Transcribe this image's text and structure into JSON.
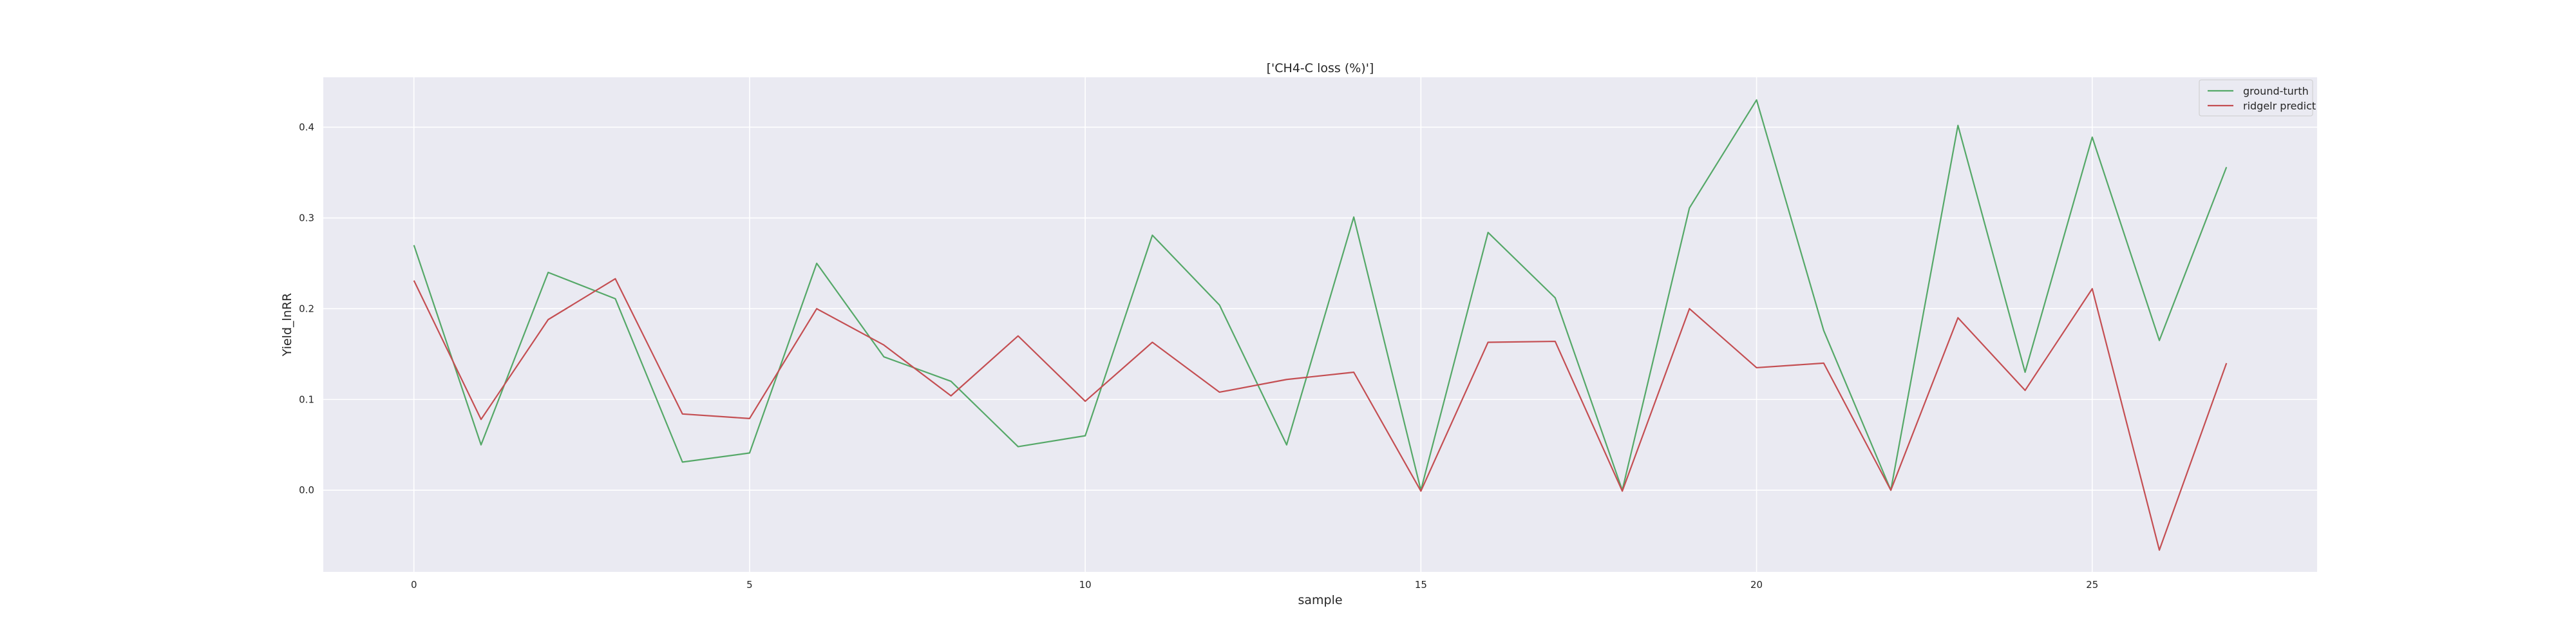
{
  "chart_data": {
    "type": "line",
    "title": "['CH4-C loss (%)']",
    "xlabel": "sample",
    "ylabel": "Yield_lnRR",
    "xlim": [
      -1.35,
      28.35
    ],
    "ylim": [
      -0.09,
      0.455
    ],
    "xticks": [
      0,
      5,
      10,
      15,
      20,
      25
    ],
    "yticks": [
      0.0,
      0.1,
      0.2,
      0.3,
      0.4
    ],
    "xtick_labels": [
      "0",
      "5",
      "10",
      "15",
      "20",
      "25"
    ],
    "ytick_labels": [
      "0.0",
      "0.1",
      "0.2",
      "0.3",
      "0.4"
    ],
    "grid": true,
    "legend_position": "top-right",
    "x": [
      0,
      1,
      2,
      3,
      4,
      5,
      6,
      7,
      8,
      9,
      10,
      11,
      12,
      13,
      14,
      15,
      16,
      17,
      18,
      19,
      20,
      21,
      22,
      23,
      24,
      25,
      26,
      27
    ],
    "series": [
      {
        "name": "ground-turth",
        "color": "#55a868",
        "values": [
          0.27,
          0.05,
          0.24,
          0.211,
          0.031,
          0.041,
          0.25,
          0.147,
          0.12,
          0.048,
          0.06,
          0.281,
          0.204,
          0.05,
          0.301,
          0.0,
          0.284,
          0.212,
          0.0,
          0.311,
          0.43,
          0.176,
          0.0,
          0.402,
          0.13,
          0.389,
          0.165,
          0.356
        ]
      },
      {
        "name": "ridgelr predict",
        "color": "#c44e52",
        "values": [
          0.231,
          0.078,
          0.188,
          0.233,
          0.084,
          0.079,
          0.2,
          0.16,
          0.104,
          0.17,
          0.098,
          0.163,
          0.108,
          0.122,
          0.13,
          -0.001,
          0.163,
          0.164,
          -0.001,
          0.2,
          0.135,
          0.14,
          0.0,
          0.19,
          0.11,
          0.222,
          -0.066,
          0.14
        ]
      }
    ]
  }
}
